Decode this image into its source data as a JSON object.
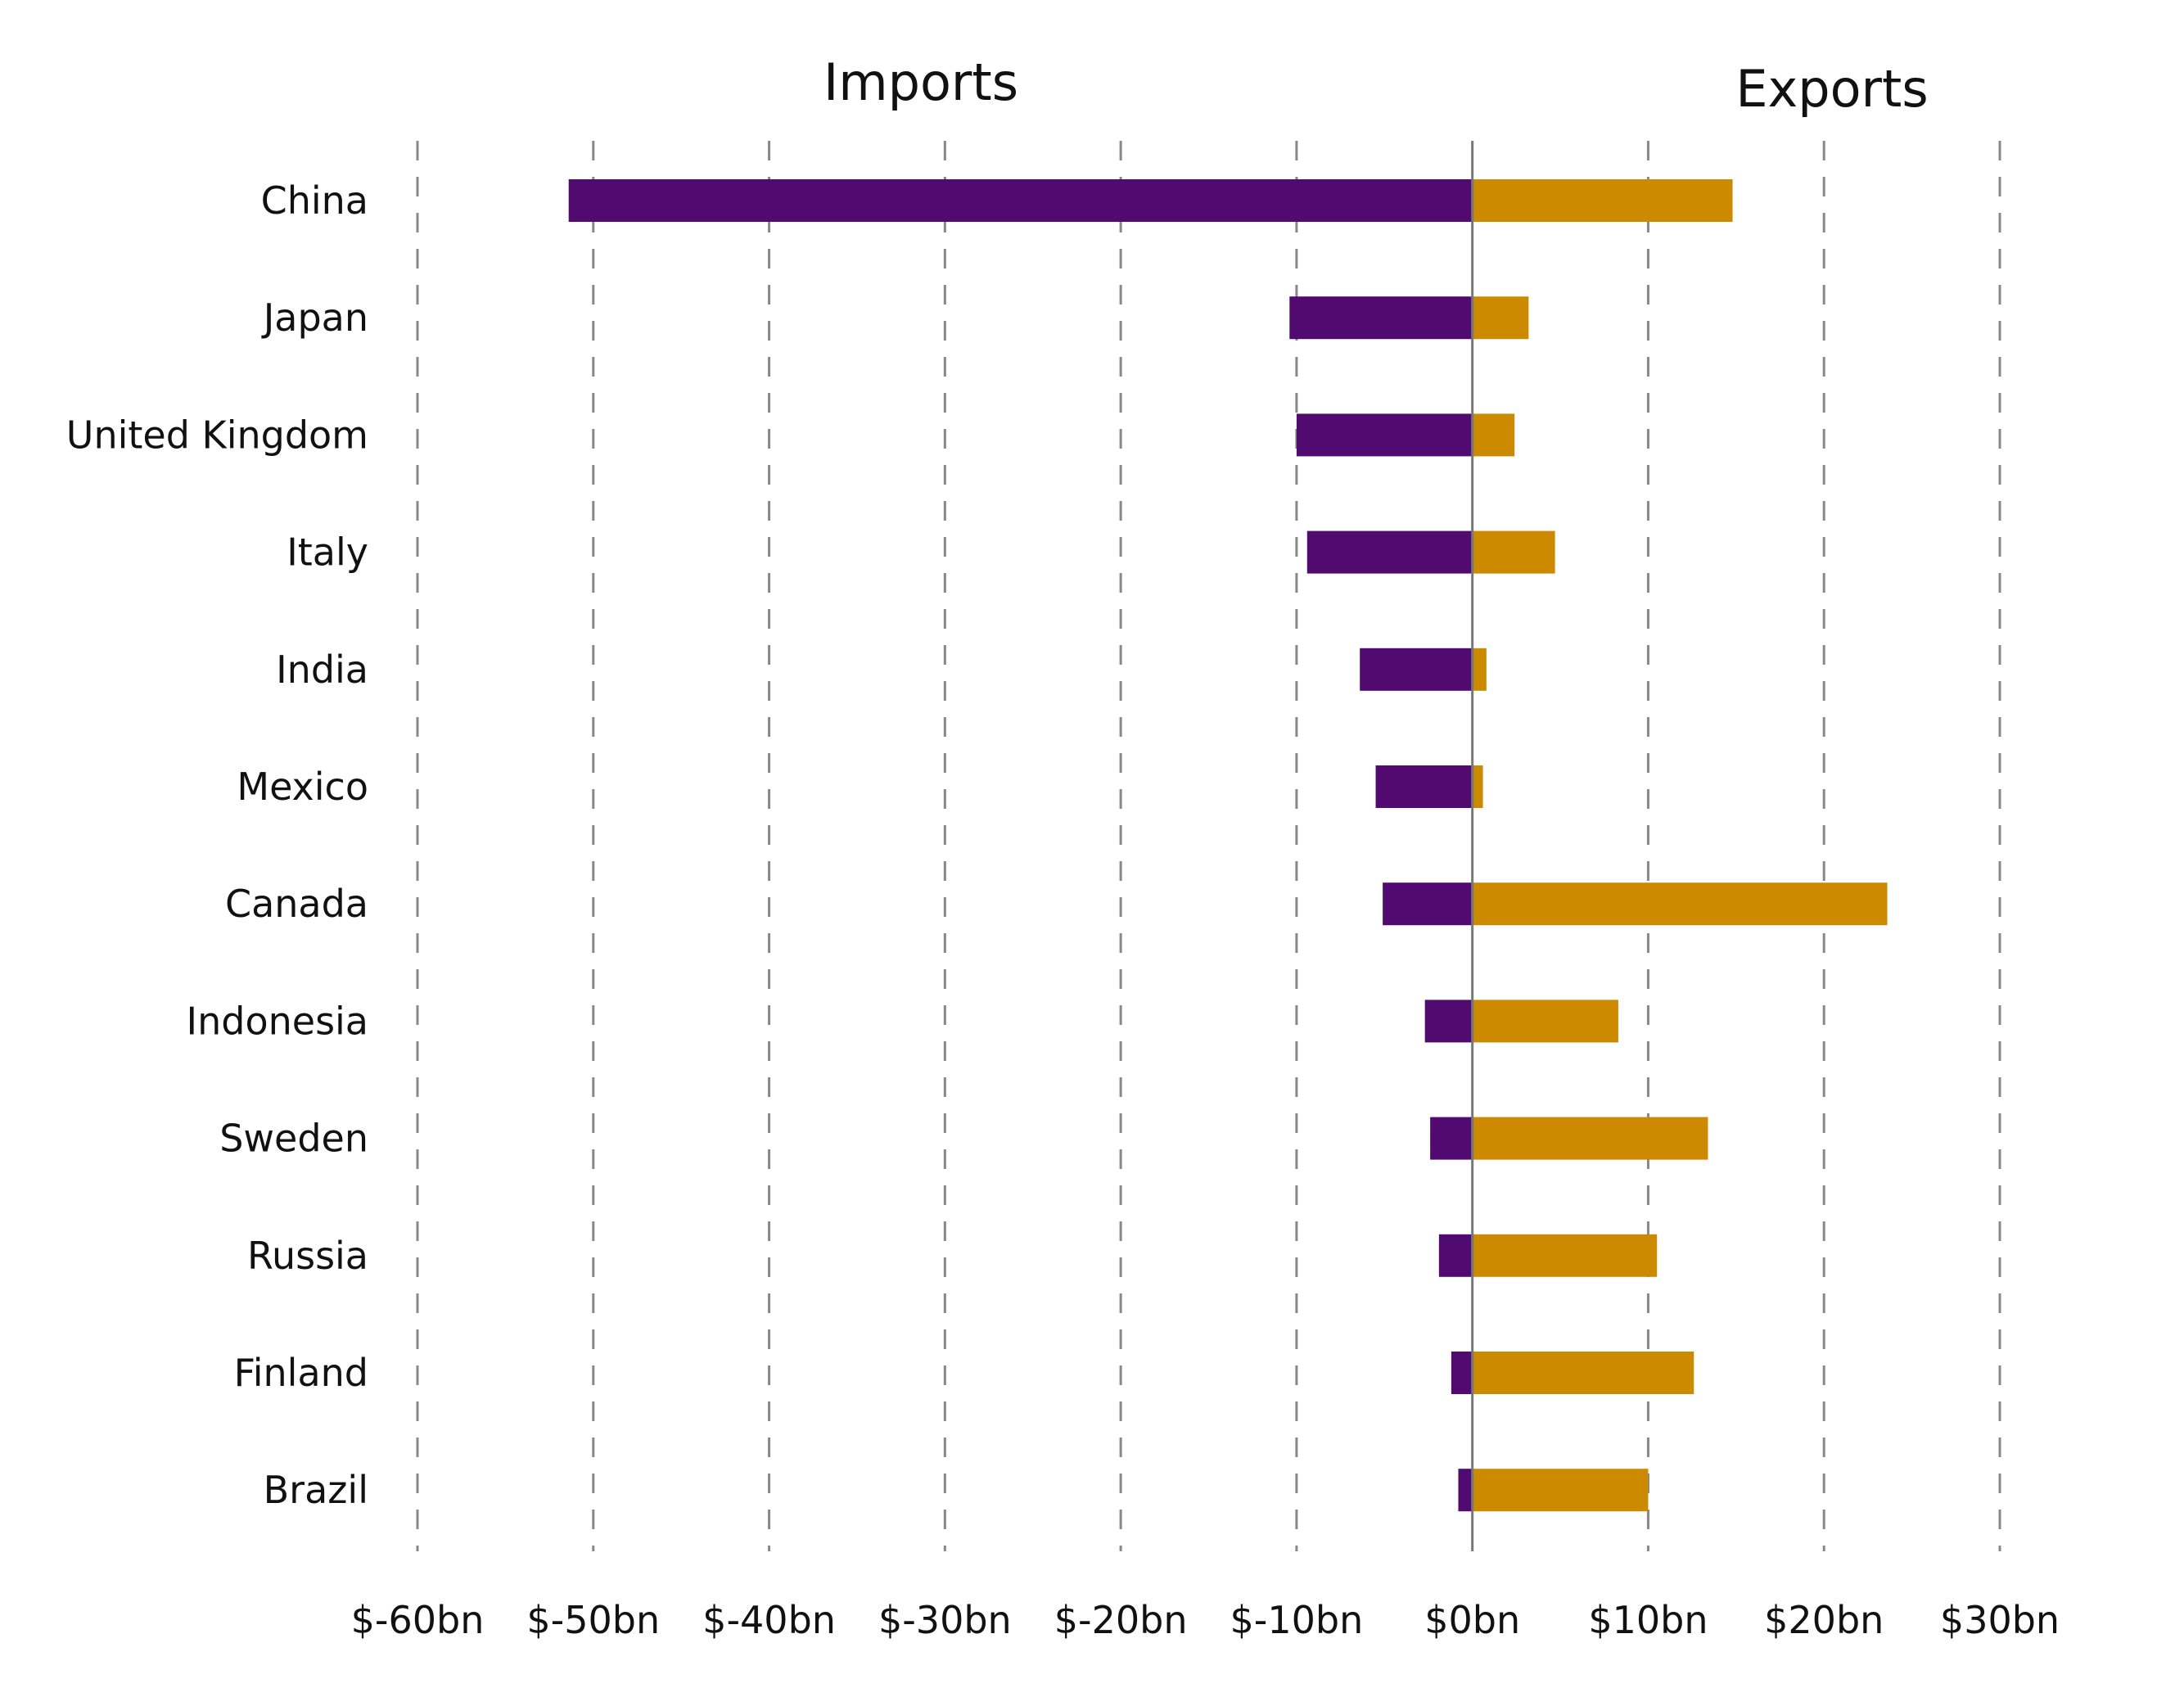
{
  "chart_data": {
    "type": "bar",
    "orientation": "horizontal",
    "headers": {
      "left": "Imports",
      "right": "Exports"
    },
    "categories": [
      "China",
      "Japan",
      "United Kingdom",
      "Italy",
      "India",
      "Mexico",
      "Canada",
      "Indonesia",
      "Sweden",
      "Russia",
      "Finland",
      "Brazil"
    ],
    "series": [
      {
        "values": [
          -51.4,
          -10.4,
          -10.0,
          -9.4,
          -6.4,
          -5.5,
          -5.1,
          -2.7,
          -2.4,
          -1.9,
          -1.2,
          -0.8
        ]
      },
      {
        "values": [
          14.8,
          3.2,
          2.4,
          4.7,
          0.8,
          0.6,
          23.6,
          8.3,
          13.4,
          10.5,
          12.6,
          10.0
        ]
      }
    ],
    "xlim": [
      -60,
      30
    ],
    "xticks": [
      -60,
      -50,
      -40,
      -30,
      -20,
      -10,
      0,
      10,
      20,
      30
    ],
    "xtick_labels": [
      "$-60bn",
      "$-50bn",
      "$-40bn",
      "$-30bn",
      "$-20bn",
      "$-10bn",
      "$0bn",
      "$10bn",
      "$20bn",
      "$30bn"
    ],
    "grid": "vertical dashed",
    "colors": {
      "imports": "#500a70",
      "exports": "#cc8a00",
      "grid": "#888888",
      "zero_line": "#777777"
    }
  }
}
